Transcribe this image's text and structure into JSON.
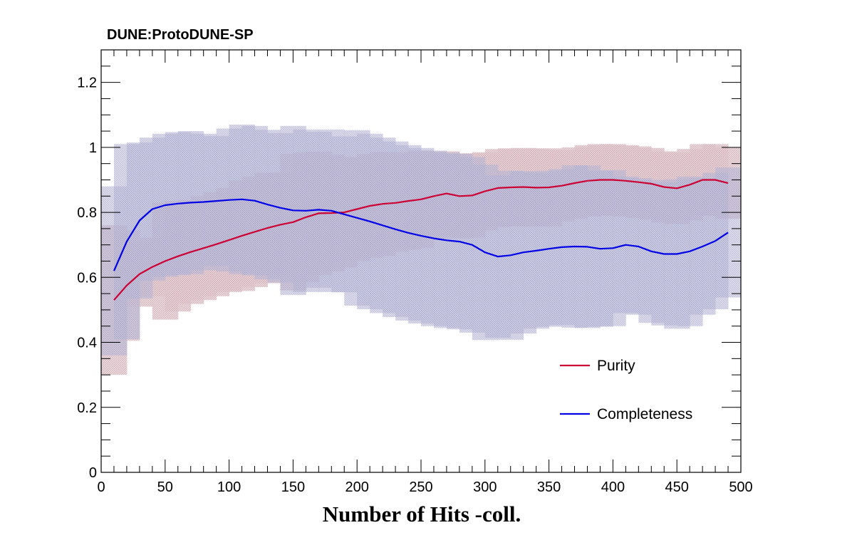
{
  "chart_data": {
    "type": "line",
    "title": "DUNE:ProtoDUNE-SP",
    "xlabel": "Number of Hits -coll.",
    "ylabel": "",
    "xlim": [
      0,
      500
    ],
    "ylim": [
      0,
      1.3
    ],
    "x_ticks": [
      "0",
      "50",
      "100",
      "150",
      "200",
      "250",
      "300",
      "350",
      "400",
      "450",
      "500"
    ],
    "y_ticks": [
      "0",
      "0.2",
      "0.4",
      "0.6",
      "0.8",
      "1",
      "1.2"
    ],
    "legend_position": "lower-right",
    "colors": {
      "purity": "#cc0033",
      "completeness": "#0000e6",
      "purity_band": "#d6b8c0",
      "completeness_band": "#a8a8cc"
    },
    "series": [
      {
        "name": "Purity",
        "color": "#cc0033",
        "x": [
          10,
          20,
          30,
          40,
          50,
          60,
          70,
          80,
          90,
          100,
          110,
          120,
          130,
          140,
          150,
          160,
          170,
          180,
          190,
          200,
          210,
          220,
          230,
          240,
          250,
          260,
          270,
          280,
          290,
          300,
          310,
          320,
          330,
          340,
          350,
          360,
          370,
          380,
          390,
          400,
          410,
          420,
          430,
          440,
          450,
          460,
          470,
          480,
          490
        ],
        "y": [
          0.53,
          0.575,
          0.61,
          0.632,
          0.65,
          0.665,
          0.678,
          0.69,
          0.702,
          0.715,
          0.728,
          0.74,
          0.752,
          0.762,
          0.77,
          0.785,
          0.797,
          0.798,
          0.8,
          0.81,
          0.82,
          0.826,
          0.829,
          0.835,
          0.84,
          0.85,
          0.858,
          0.85,
          0.852,
          0.865,
          0.875,
          0.877,
          0.878,
          0.876,
          0.877,
          0.882,
          0.89,
          0.897,
          0.9,
          0.9,
          0.897,
          0.893,
          0.888,
          0.878,
          0.874,
          0.885,
          0.9,
          0.9,
          0.89
        ],
        "error": [
          0.23,
          0.17,
          0.1,
          0.09,
          0.18,
          0.17,
          0.16,
          0.16,
          0.16,
          0.16,
          0.17,
          0.17,
          0.17,
          0.16,
          0.21,
          0.2,
          0.19,
          0.18,
          0.17,
          0.16,
          0.16,
          0.16,
          0.15,
          0.15,
          0.15,
          0.13,
          0.13,
          0.13,
          0.13,
          0.12,
          0.12,
          0.12,
          0.12,
          0.12,
          0.12,
          0.11,
          0.11,
          0.11,
          0.11,
          0.11,
          0.11,
          0.11,
          0.11,
          0.11,
          0.11,
          0.11,
          0.11,
          0.11,
          0.11
        ]
      },
      {
        "name": "Completeness",
        "color": "#0000e6",
        "x": [
          10,
          20,
          30,
          40,
          50,
          60,
          70,
          80,
          90,
          100,
          110,
          120,
          130,
          140,
          150,
          160,
          170,
          180,
          190,
          200,
          210,
          220,
          230,
          240,
          250,
          260,
          270,
          280,
          290,
          300,
          310,
          320,
          330,
          340,
          350,
          360,
          370,
          380,
          390,
          400,
          410,
          420,
          430,
          440,
          450,
          460,
          470,
          480,
          490
        ],
        "y": [
          0.62,
          0.71,
          0.775,
          0.81,
          0.822,
          0.827,
          0.83,
          0.832,
          0.835,
          0.838,
          0.84,
          0.836,
          0.824,
          0.814,
          0.806,
          0.805,
          0.808,
          0.805,
          0.794,
          0.783,
          0.772,
          0.76,
          0.748,
          0.737,
          0.728,
          0.72,
          0.714,
          0.71,
          0.7,
          0.677,
          0.664,
          0.668,
          0.677,
          0.682,
          0.688,
          0.693,
          0.695,
          0.694,
          0.688,
          0.69,
          0.7,
          0.695,
          0.68,
          0.672,
          0.672,
          0.68,
          0.695,
          0.712,
          0.738
        ],
        "error": [
          0.26,
          0.3,
          0.24,
          0.22,
          0.22,
          0.22,
          0.22,
          0.21,
          0.2,
          0.22,
          0.23,
          0.23,
          0.23,
          0.23,
          0.26,
          0.25,
          0.24,
          0.25,
          0.24,
          0.27,
          0.27,
          0.27,
          0.27,
          0.27,
          0.27,
          0.27,
          0.27,
          0.27,
          0.27,
          0.27,
          0.25,
          0.26,
          0.25,
          0.24,
          0.24,
          0.24,
          0.25,
          0.25,
          0.24,
          0.24,
          0.21,
          0.21,
          0.22,
          0.22,
          0.23,
          0.23,
          0.21,
          0.21,
          0.2
        ]
      }
    ]
  }
}
